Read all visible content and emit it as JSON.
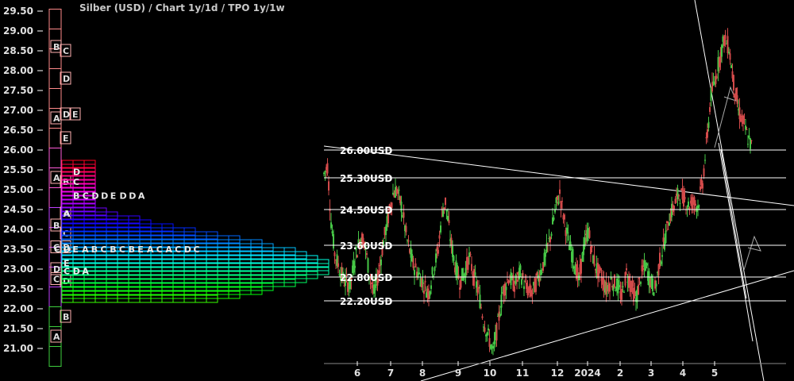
{
  "title": "Silber (USD) /  Chart 1y/1d / TPO 1y/1w",
  "colors": {
    "background": "#000000",
    "candle_up": "#46c646",
    "candle_down": "#d24a4a",
    "line": "#ffffff",
    "axis_text": "#e0e0e0"
  },
  "chart_data": {
    "type": "candlestick",
    "title": "Silber (USD) /  Chart 1y/1d / TPO 1y/1w",
    "y_axis": {
      "ticks": [
        "29.50",
        "29.00",
        "28.50",
        "28.00",
        "27.50",
        "27.00",
        "26.50",
        "26.00",
        "25.50",
        "25.00",
        "24.50",
        "24.00",
        "23.50",
        "23.00",
        "22.50",
        "22.00",
        "21.50",
        "21.00"
      ],
      "range": [
        20.7,
        29.6
      ]
    },
    "x_axis": {
      "ticks": [
        "6",
        "7",
        "8",
        "9",
        "10",
        "11",
        "12",
        "2024",
        "2",
        "3",
        "4",
        "5"
      ]
    },
    "grid": false,
    "levels": [
      {
        "value": 26.0,
        "label": "26.00USD"
      },
      {
        "value": 25.3,
        "label": "25.30USD"
      },
      {
        "value": 24.5,
        "label": "24.50USD"
      },
      {
        "value": 23.6,
        "label": "23.60USD"
      },
      {
        "value": 22.8,
        "label": "22.80USD"
      },
      {
        "value": 22.2,
        "label": "22.20USD"
      }
    ],
    "price_path": [
      [
        0,
        25.4
      ],
      [
        3,
        25.6
      ],
      [
        6,
        24.2
      ],
      [
        9,
        23.4
      ],
      [
        13,
        23.0
      ],
      [
        17,
        22.7
      ],
      [
        22,
        22.6
      ],
      [
        27,
        23.4
      ],
      [
        31,
        23.8
      ],
      [
        34,
        23.7
      ],
      [
        38,
        22.9
      ],
      [
        42,
        22.4
      ],
      [
        46,
        22.9
      ],
      [
        50,
        23.7
      ],
      [
        54,
        24.3
      ],
      [
        58,
        24.9
      ],
      [
        61,
        25.0
      ],
      [
        65,
        24.6
      ],
      [
        70,
        23.7
      ],
      [
        75,
        23.1
      ],
      [
        79,
        22.9
      ],
      [
        84,
        22.6
      ],
      [
        88,
        22.4
      ],
      [
        92,
        23.0
      ],
      [
        96,
        23.5
      ],
      [
        99,
        24.4
      ],
      [
        102,
        24.7
      ],
      [
        106,
        23.8
      ],
      [
        110,
        23.1
      ],
      [
        114,
        22.7
      ],
      [
        118,
        22.9
      ],
      [
        122,
        23.3
      ],
      [
        126,
        22.8
      ],
      [
        130,
        22.4
      ],
      [
        134,
        21.7
      ],
      [
        138,
        21.3
      ],
      [
        142,
        20.9
      ],
      [
        146,
        21.6
      ],
      [
        150,
        22.4
      ],
      [
        155,
        22.8
      ],
      [
        160,
        22.6
      ],
      [
        165,
        22.9
      ],
      [
        170,
        22.5
      ],
      [
        175,
        22.4
      ],
      [
        180,
        22.8
      ],
      [
        185,
        23.2
      ],
      [
        190,
        23.8
      ],
      [
        195,
        24.6
      ],
      [
        198,
        24.9
      ],
      [
        202,
        24.2
      ],
      [
        206,
        23.6
      ],
      [
        210,
        23.2
      ],
      [
        214,
        22.7
      ],
      [
        218,
        23.5
      ],
      [
        222,
        24.0
      ],
      [
        225,
        23.4
      ],
      [
        229,
        23.0
      ],
      [
        233,
        22.8
      ],
      [
        237,
        22.5
      ],
      [
        241,
        22.7
      ],
      [
        246,
        22.6
      ],
      [
        250,
        22.3
      ],
      [
        254,
        22.9
      ],
      [
        258,
        22.6
      ],
      [
        262,
        22.2
      ],
      [
        266,
        22.8
      ],
      [
        270,
        23.1
      ],
      [
        274,
        22.7
      ],
      [
        278,
        22.5
      ],
      [
        282,
        23.2
      ],
      [
        286,
        23.7
      ],
      [
        290,
        24.3
      ],
      [
        294,
        24.6
      ],
      [
        298,
        24.9
      ],
      [
        302,
        24.8
      ],
      [
        306,
        24.6
      ],
      [
        310,
        24.7
      ],
      [
        314,
        24.6
      ],
      [
        318,
        25.2
      ],
      [
        322,
        26.4
      ],
      [
        325,
        27.4
      ],
      [
        328,
        27.7
      ],
      [
        332,
        28.3
      ],
      [
        336,
        28.8
      ],
      [
        340,
        28.6
      ],
      [
        344,
        27.7
      ],
      [
        348,
        27.0
      ],
      [
        352,
        26.7
      ],
      [
        356,
        26.3
      ],
      [
        359,
        26.1
      ]
    ],
    "tpo_profile": {
      "letters": [
        "A",
        "B",
        "C",
        "D",
        "E"
      ],
      "peak_value": 23.1
    }
  }
}
